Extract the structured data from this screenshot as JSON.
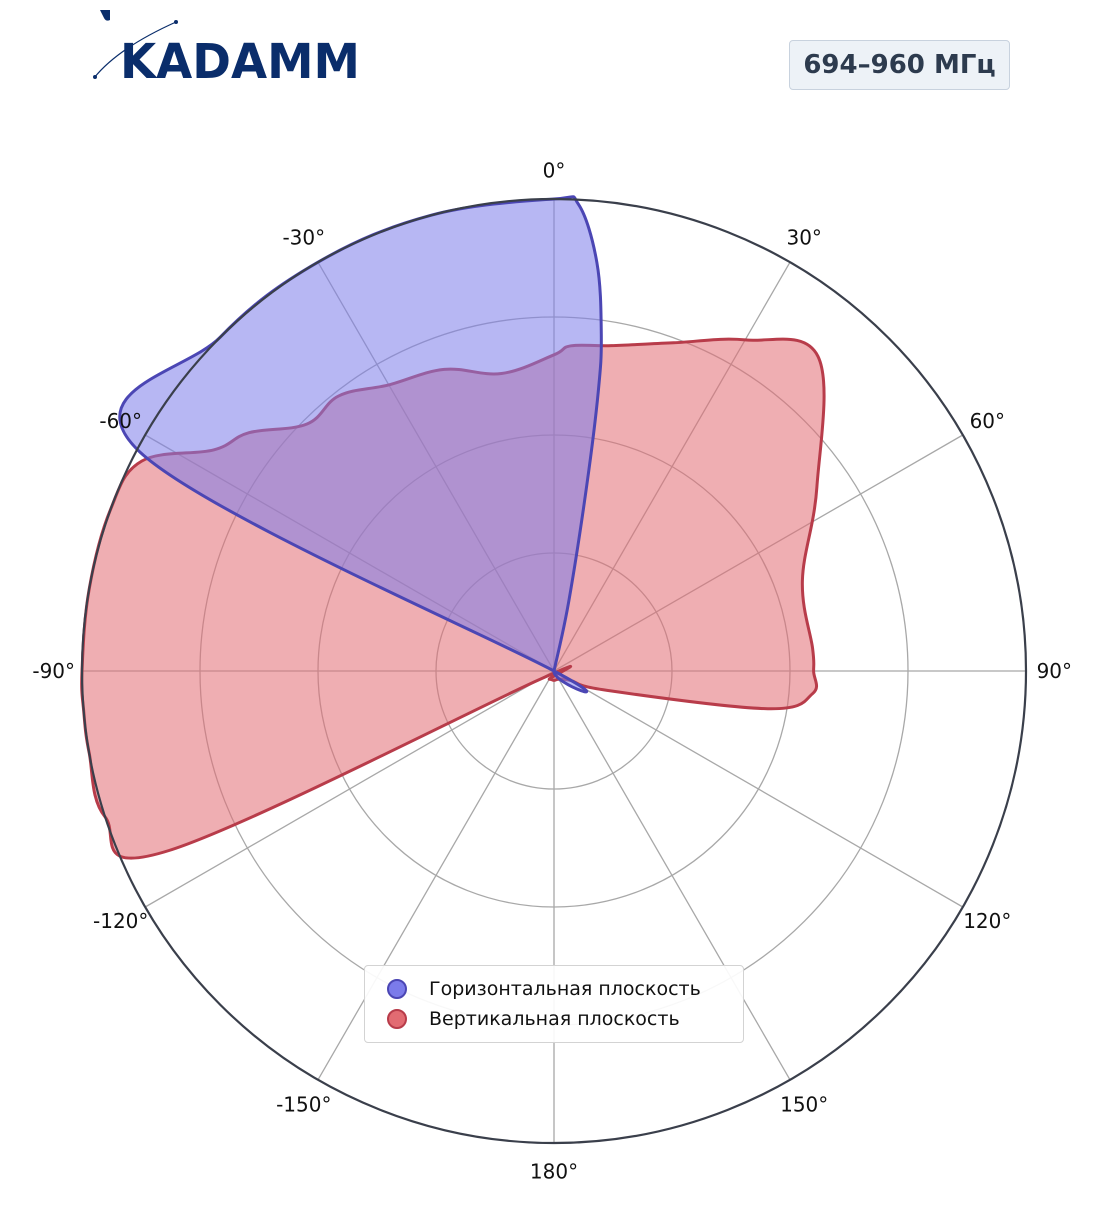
{
  "header": {
    "logo_text": "KADAMM",
    "badge": "694–960 МГц"
  },
  "colors": {
    "logo": "#0a2d6b",
    "horizontal_fill": "#7b7bea",
    "horizontal_line": "#4b46b4",
    "vertical_fill": "#e26b72",
    "vertical_line": "#b83c4a",
    "grid": "#a8a8a8",
    "outer_ring": "#3a3f4b"
  },
  "chart_data": {
    "type": "polar-area",
    "angular_ticks": [
      "0°",
      "30°",
      "60°",
      "90°",
      "120°",
      "150°",
      "180°",
      "-150°",
      "-120°",
      "-90°",
      "-60°",
      "-30°"
    ],
    "angular_tick_values": [
      0,
      30,
      60,
      90,
      120,
      150,
      180,
      -150,
      -120,
      -90,
      -60,
      -30
    ],
    "radial_range": [
      0,
      1
    ],
    "radial_grid": [
      0.25,
      0.5,
      0.75,
      1.0
    ],
    "radial_ticks_shown": false,
    "legend_position": "bottom-center",
    "series": [
      {
        "name": "Горизонтальная плоскость",
        "points": [
          {
            "angle": -62,
            "r": 1.0
          },
          {
            "angle": -45,
            "r": 1.0
          },
          {
            "angle": -30,
            "r": 1.0
          },
          {
            "angle": -15,
            "r": 1.0
          },
          {
            "angle": 0,
            "r": 1.0
          },
          {
            "angle": 3,
            "r": 0.99
          },
          {
            "angle": 6,
            "r": 0.87
          },
          {
            "angle": 8,
            "r": 0.72
          },
          {
            "angle": 9,
            "r": 0.6
          },
          {
            "angle": 10,
            "r": 0.4
          },
          {
            "angle": 12,
            "r": 0.15
          },
          {
            "angle": 15,
            "r": 0.0
          },
          {
            "angle": -65,
            "r": 0.0
          }
        ]
      },
      {
        "name": "Вертикальная плоскость",
        "points": [
          {
            "angle": -95,
            "r": 1.0
          },
          {
            "angle": -90,
            "r": 1.0
          },
          {
            "angle": -80,
            "r": 1.0
          },
          {
            "angle": -70,
            "r": 1.0
          },
          {
            "angle": -63,
            "r": 0.98
          },
          {
            "angle": -57,
            "r": 0.86
          },
          {
            "angle": -52,
            "r": 0.82
          },
          {
            "angle": -45,
            "r": 0.74
          },
          {
            "angle": -38,
            "r": 0.74
          },
          {
            "angle": -30,
            "r": 0.7
          },
          {
            "angle": -20,
            "r": 0.68
          },
          {
            "angle": -10,
            "r": 0.64
          },
          {
            "angle": 0,
            "r": 0.67
          },
          {
            "angle": 3,
            "r": 0.69
          },
          {
            "angle": 10,
            "r": 0.7
          },
          {
            "angle": 20,
            "r": 0.74
          },
          {
            "angle": 30,
            "r": 0.81
          },
          {
            "angle": 40,
            "r": 0.87
          },
          {
            "angle": 55,
            "r": 0.68
          },
          {
            "angle": 70,
            "r": 0.56
          },
          {
            "angle": 85,
            "r": 0.55
          },
          {
            "angle": 90,
            "r": 0.55
          },
          {
            "angle": 95,
            "r": 0.55
          },
          {
            "angle": 100,
            "r": 0.46
          },
          {
            "angle": 110,
            "r": 0.12
          },
          {
            "angle": 120,
            "r": 0.04
          },
          {
            "angle": 150,
            "r": 0.02
          },
          {
            "angle": 180,
            "r": 0.02
          },
          {
            "angle": -150,
            "r": 0.02
          },
          {
            "angle": -120,
            "r": 0.04
          },
          {
            "angle": -115,
            "r": 0.9
          },
          {
            "angle": -108,
            "r": 1.0
          },
          {
            "angle": -100,
            "r": 1.0
          }
        ]
      }
    ]
  }
}
